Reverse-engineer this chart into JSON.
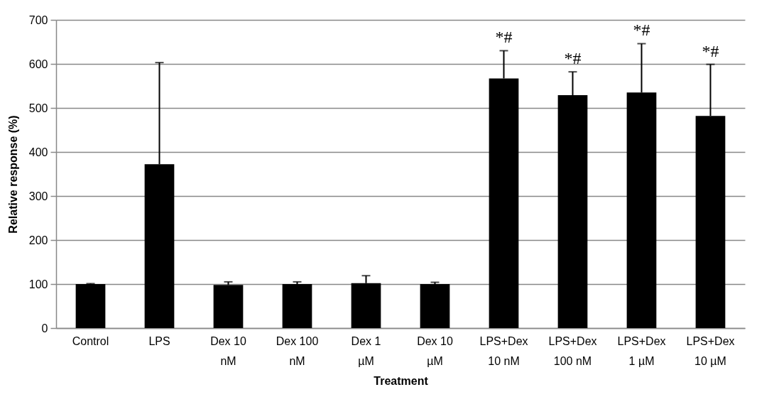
{
  "chart_data": {
    "type": "bar",
    "xlabel": "Treatment",
    "ylabel": "Relative response (%)",
    "categories": [
      "Control",
      "LPS",
      "Dex 10 nM",
      "Dex 100 nM",
      "Dex 1 µM",
      "Dex 10 µM",
      "LPS+Dex 10 nM",
      "LPS+Dex 100 nM",
      "LPS+Dex 1 µM",
      "LPS+Dex 10 µM"
    ],
    "values": [
      100,
      372,
      98,
      100,
      102,
      100,
      567,
      529,
      535,
      482
    ],
    "errors": [
      [
        100,
        101
      ],
      [
        372,
        603
      ],
      [
        98,
        105
      ],
      [
        100,
        105
      ],
      [
        102,
        119
      ],
      [
        100,
        104
      ],
      [
        567,
        630
      ],
      [
        529,
        582
      ],
      [
        535,
        646
      ],
      [
        482,
        599
      ]
    ],
    "color": "#000000",
    "ylim": [
      0,
      700
    ],
    "yticks": [
      0,
      100,
      200,
      300,
      400,
      500,
      600,
      700
    ],
    "grid": "y",
    "annotations": [
      {
        "text": "*#",
        "x": "LPS+Dex 10 nM",
        "y": 630
      },
      {
        "text": "*#",
        "x": "LPS+Dex 100 nM",
        "y": 582
      },
      {
        "text": "*#",
        "x": "LPS+Dex 1 µM",
        "y": 646
      },
      {
        "text": "*#",
        "x": "LPS+Dex 10 µM",
        "y": 599
      }
    ]
  }
}
